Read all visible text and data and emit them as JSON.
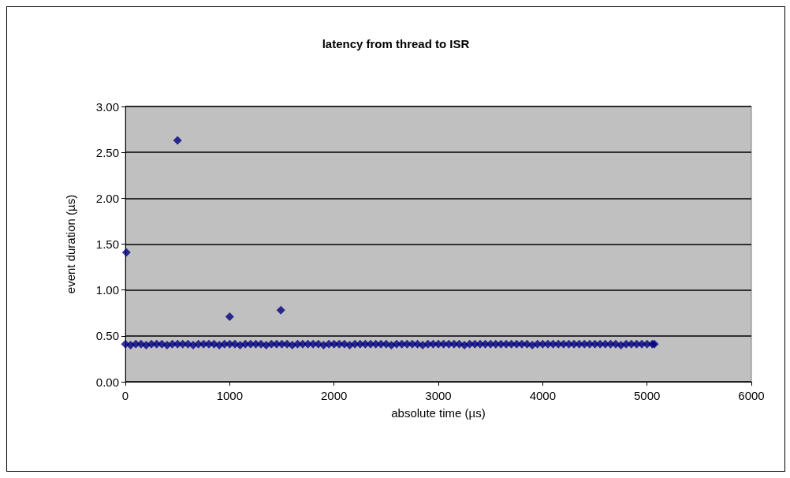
{
  "chart_data": {
    "type": "scatter",
    "title": "latency from thread to ISR",
    "xlabel": "absolute time (µs)",
    "ylabel": "event duration (µs)",
    "x": [
      10,
      500,
      1000,
      1490,
      0,
      50,
      100,
      150,
      200,
      250,
      300,
      350,
      400,
      450,
      500,
      550,
      600,
      650,
      700,
      750,
      800,
      850,
      900,
      950,
      1000,
      1050,
      1100,
      1150,
      1200,
      1250,
      1300,
      1350,
      1400,
      1450,
      1500,
      1550,
      1600,
      1650,
      1700,
      1750,
      1800,
      1850,
      1900,
      1950,
      2000,
      2050,
      2100,
      2150,
      2200,
      2250,
      2300,
      2350,
      2400,
      2450,
      2500,
      2550,
      2600,
      2650,
      2700,
      2750,
      2800,
      2850,
      2900,
      2950,
      3000,
      3050,
      3100,
      3150,
      3200,
      3250,
      3300,
      3350,
      3400,
      3450,
      3500,
      3550,
      3600,
      3650,
      3700,
      3750,
      3800,
      3850,
      3900,
      3950,
      4000,
      4050,
      4100,
      4150,
      4200,
      4250,
      4300,
      4350,
      4400,
      4450,
      4500,
      4550,
      4600,
      4650,
      4700,
      4750,
      4800,
      4850,
      4900,
      4950,
      5000,
      5050,
      5070
    ],
    "values": [
      1.41,
      2.63,
      0.71,
      0.78,
      0.41,
      0.4,
      0.41,
      0.41,
      0.4,
      0.41,
      0.41,
      0.41,
      0.4,
      0.41,
      0.41,
      0.41,
      0.41,
      0.4,
      0.41,
      0.41,
      0.41,
      0.41,
      0.4,
      0.41,
      0.41,
      0.41,
      0.4,
      0.41,
      0.41,
      0.41,
      0.41,
      0.4,
      0.41,
      0.41,
      0.41,
      0.41,
      0.4,
      0.41,
      0.41,
      0.41,
      0.41,
      0.41,
      0.4,
      0.41,
      0.41,
      0.41,
      0.41,
      0.4,
      0.41,
      0.41,
      0.41,
      0.41,
      0.41,
      0.41,
      0.41,
      0.4,
      0.41,
      0.41,
      0.41,
      0.41,
      0.41,
      0.4,
      0.41,
      0.41,
      0.41,
      0.41,
      0.41,
      0.41,
      0.41,
      0.4,
      0.41,
      0.41,
      0.41,
      0.41,
      0.41,
      0.41,
      0.41,
      0.41,
      0.41,
      0.41,
      0.41,
      0.41,
      0.4,
      0.41,
      0.41,
      0.41,
      0.41,
      0.41,
      0.41,
      0.41,
      0.41,
      0.41,
      0.41,
      0.41,
      0.41,
      0.41,
      0.41,
      0.41,
      0.41,
      0.4,
      0.41,
      0.41,
      0.41,
      0.41,
      0.41,
      0.41,
      0.41
    ],
    "color": "#000080",
    "marker": "diamond",
    "grid": "y",
    "xlim": [
      0,
      6000
    ],
    "xticks": [
      0,
      1000,
      2000,
      3000,
      4000,
      5000,
      6000
    ],
    "ylim": [
      0,
      3
    ],
    "yticks": [
      {
        "value": 0,
        "label": "0.00"
      },
      {
        "value": 0.5,
        "label": "0.50"
      },
      {
        "value": 1,
        "label": "1.00"
      },
      {
        "value": 1.5,
        "label": "1.50"
      },
      {
        "value": 2,
        "label": "2.00"
      },
      {
        "value": 2.5,
        "label": "2.50"
      },
      {
        "value": 3,
        "label": "3.00"
      }
    ]
  }
}
